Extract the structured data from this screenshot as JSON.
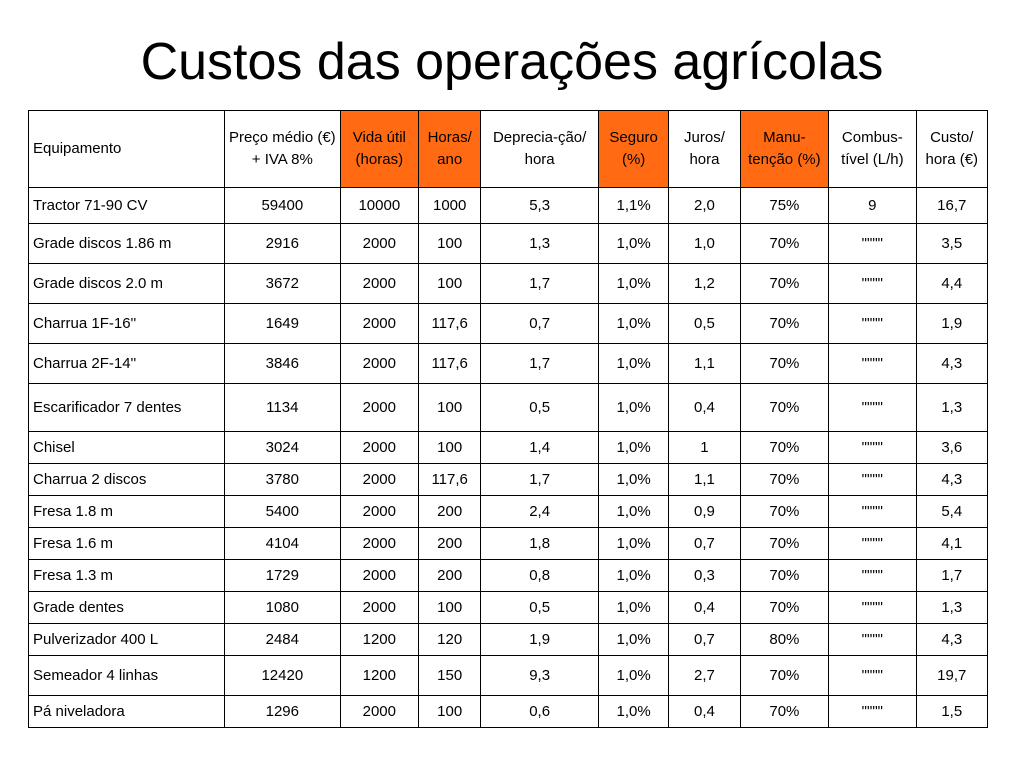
{
  "title": "Custos das operações agrícolas",
  "colors": {
    "highlight": "#ff6a13",
    "border": "#000000",
    "background": "#ffffff"
  },
  "headers": [
    {
      "label": "Equipamento",
      "highlight": false,
      "align": "left"
    },
    {
      "label": "Preço médio (€) + IVA 8%",
      "highlight": false
    },
    {
      "label": "Vida útil (horas)",
      "highlight": true
    },
    {
      "label": "Horas/ ano",
      "highlight": true
    },
    {
      "label": "Deprecia-ção/ hora",
      "highlight": false
    },
    {
      "label": "Seguro (%)",
      "highlight": true
    },
    {
      "label": "Juros/ hora",
      "highlight": false
    },
    {
      "label": "Manu-tenção (%)",
      "highlight": true
    },
    {
      "label": "Combus-tível (L/h)",
      "highlight": false
    },
    {
      "label": "Custo/ hora (€)",
      "highlight": false
    }
  ],
  "rows": [
    [
      "Tractor 71-90 CV",
      "59400",
      "10000",
      "1000",
      "5,3",
      "1,1%",
      "2,0",
      "75%",
      "9",
      "16,7"
    ],
    [
      "Grade discos 1.86 m",
      "2916",
      "2000",
      "100",
      "1,3",
      "1,0%",
      "1,0",
      "70%",
      "\"\"\"\"",
      "3,5"
    ],
    [
      "Grade discos 2.0 m",
      "3672",
      "2000",
      "100",
      "1,7",
      "1,0%",
      "1,2",
      "70%",
      "\"\"\"\"",
      "4,4"
    ],
    [
      "Charrua 1F-16''",
      "1649",
      "2000",
      "117,6",
      "0,7",
      "1,0%",
      "0,5",
      "70%",
      "\"\"\"\"",
      "1,9"
    ],
    [
      "Charrua 2F-14''",
      "3846",
      "2000",
      "117,6",
      "1,7",
      "1,0%",
      "1,1",
      "70%",
      "\"\"\"\"",
      "4,3"
    ],
    [
      "Escarificador 7 dentes",
      "1134",
      "2000",
      "100",
      "0,5",
      "1,0%",
      "0,4",
      "70%",
      "\"\"\"\"",
      "1,3"
    ],
    [
      "Chisel",
      "3024",
      "2000",
      "100",
      "1,4",
      "1,0%",
      "1",
      "70%",
      "\"\"\"\"",
      "3,6"
    ],
    [
      "Charrua 2 discos",
      "3780",
      "2000",
      "117,6",
      "1,7",
      "1,0%",
      "1,1",
      "70%",
      "\"\"\"\"",
      "4,3"
    ],
    [
      "Fresa  1.8 m",
      "5400",
      "2000",
      "200",
      "2,4",
      "1,0%",
      "0,9",
      "70%",
      "\"\"\"\"",
      "5,4"
    ],
    [
      "Fresa  1.6 m",
      "4104",
      "2000",
      "200",
      "1,8",
      "1,0%",
      "0,7",
      "70%",
      "\"\"\"\"",
      "4,1"
    ],
    [
      "Fresa  1.3 m",
      "1729",
      "2000",
      "200",
      "0,8",
      "1,0%",
      "0,3",
      "70%",
      "\"\"\"\"",
      "1,7"
    ],
    [
      "Grade dentes",
      "1080",
      "2000",
      "100",
      "0,5",
      "1,0%",
      "0,4",
      "70%",
      "\"\"\"\"",
      "1,3"
    ],
    [
      "Pulverizador 400 L",
      "2484",
      "1200",
      "120",
      "1,9",
      "1,0%",
      "0,7",
      "80%",
      "\"\"\"\"",
      "4,3"
    ],
    [
      "Semeador 4 linhas",
      "12420",
      "1200",
      "150",
      "9,3",
      "1,0%",
      "2,7",
      "70%",
      "\"\"\"\"",
      "19,7"
    ],
    [
      "Pá niveladora",
      "1296",
      "2000",
      "100",
      "0,6",
      "1,0%",
      "0,4",
      "70%",
      "\"\"\"\"",
      "1,5"
    ]
  ]
}
